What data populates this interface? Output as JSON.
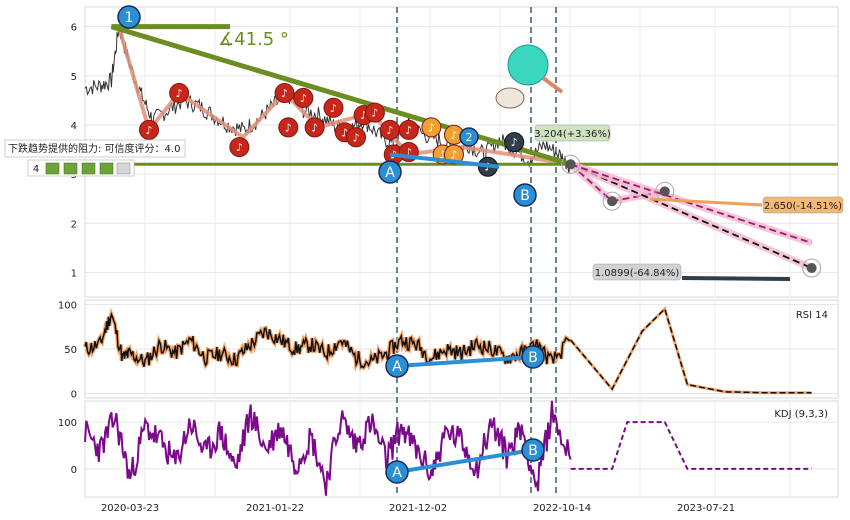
{
  "chart_data": [
    {
      "type": "line",
      "panel": "price",
      "ylim": [
        0.5,
        6.4
      ],
      "yticks": [
        1,
        2,
        3,
        4,
        5,
        6
      ],
      "x_ticks": [
        "2020-03-23",
        "2021-01-22",
        "2021-12-02",
        "2022-10-14",
        "2023-07-21"
      ],
      "x_tick_index": [
        0,
        1,
        2,
        3,
        4
      ],
      "angle_label": "∡41.5 °",
      "resistance_label": "下跌趋势提供的阻力: 可信度评分：4.0",
      "rating_number": "4",
      "annotations": [
        {
          "text": "3.204(+3.36%)",
          "color": "#cfe3bf"
        },
        {
          "text": "2.650(-14.51%)",
          "color": "#f3b776"
        },
        {
          "text": "1.0899(-64.84%)",
          "color": "#d0d3d6"
        }
      ],
      "wave_labels": [
        "1",
        "2",
        "A",
        "B"
      ],
      "series": [
        {
          "values_t": [
            0.0,
            0.02,
            0.035,
            0.045,
            0.06,
            0.075,
            0.09,
            0.11,
            0.13,
            0.15,
            0.17,
            0.19,
            0.21,
            0.23,
            0.25,
            0.27,
            0.29,
            0.31,
            0.33,
            0.35,
            0.37,
            0.39,
            0.41,
            0.43,
            0.45,
            0.47,
            0.49,
            0.51,
            0.53,
            0.55,
            0.57,
            0.59,
            0.61,
            0.63,
            0.645
          ],
          "values": [
            4.75,
            4.8,
            4.9,
            6.0,
            5.2,
            4.6,
            4.1,
            4.3,
            4.5,
            4.4,
            4.2,
            4.0,
            3.9,
            4.1,
            4.4,
            4.6,
            4.3,
            4.2,
            4.0,
            3.9,
            4.1,
            3.8,
            3.6,
            4.0,
            3.8,
            3.7,
            3.5,
            3.6,
            3.4,
            3.7,
            3.5,
            3.3,
            3.6,
            3.4,
            3.15
          ]
        }
      ],
      "trend_line": {
        "start": [
          0.035,
          6.0
        ],
        "end": [
          0.645,
          3.2
        ]
      },
      "support_level": 3.2,
      "projections": [
        {
          "points": [
            [
              0.645,
              3.2
            ],
            [
              0.7,
              2.45
            ],
            [
              0.77,
              2.65
            ]
          ],
          "style": "dashed-pink"
        },
        {
          "points": [
            [
              0.645,
              3.2
            ],
            [
              0.965,
              1.09
            ]
          ],
          "style": "dashed-black"
        },
        {
          "points": [
            [
              0.645,
              3.2
            ],
            [
              0.965,
              1.6
            ]
          ],
          "style": "dashed-pink"
        }
      ]
    },
    {
      "type": "line",
      "panel": "rsi",
      "title": "RSI 14",
      "ylim": [
        -5,
        105
      ],
      "yticks": [
        0,
        50,
        100
      ],
      "series": [
        {
          "values_t": [
            0.0,
            0.02,
            0.035,
            0.05,
            0.06,
            0.08,
            0.1,
            0.12,
            0.14,
            0.16,
            0.18,
            0.2,
            0.22,
            0.24,
            0.26,
            0.28,
            0.3,
            0.32,
            0.34,
            0.36,
            0.38,
            0.4,
            0.42,
            0.44,
            0.46,
            0.48,
            0.5,
            0.52,
            0.54,
            0.56,
            0.58,
            0.6,
            0.62,
            0.645
          ],
          "values": [
            50,
            55,
            90,
            40,
            45,
            35,
            55,
            45,
            60,
            40,
            45,
            38,
            55,
            70,
            60,
            50,
            55,
            45,
            60,
            40,
            35,
            45,
            60,
            55,
            40,
            50,
            45,
            55,
            50,
            40,
            45,
            55,
            35,
            60
          ]
        },
        {
          "values_t": [
            0.645,
            0.7,
            0.74,
            0.77,
            0.8,
            0.85,
            0.9,
            0.965
          ],
          "values": [
            60,
            5,
            70,
            95,
            10,
            2,
            1,
            1
          ]
        }
      ]
    },
    {
      "type": "line",
      "panel": "kdj",
      "title": "KDJ (9,3,3)",
      "ylim": [
        -60,
        145
      ],
      "yticks": [
        0,
        100
      ],
      "series": [
        {
          "values_t": [
            0.0,
            0.02,
            0.04,
            0.06,
            0.08,
            0.1,
            0.12,
            0.14,
            0.16,
            0.18,
            0.2,
            0.22,
            0.24,
            0.26,
            0.28,
            0.3,
            0.32,
            0.34,
            0.36,
            0.38,
            0.4,
            0.42,
            0.44,
            0.46,
            0.48,
            0.5,
            0.52,
            0.54,
            0.56,
            0.58,
            0.6,
            0.62,
            0.645
          ],
          "values": [
            80,
            40,
            110,
            -20,
            90,
            60,
            10,
            100,
            30,
            80,
            0,
            120,
            40,
            90,
            10,
            70,
            -30,
            110,
            50,
            100,
            20,
            90,
            40,
            -10,
            80,
            60,
            0,
            100,
            30,
            90,
            -40,
            120,
            20
          ]
        },
        {
          "values_t": [
            0.645,
            0.7,
            0.72,
            0.77,
            0.8,
            0.965
          ],
          "values": [
            0,
            0,
            100,
            100,
            0,
            0
          ]
        }
      ]
    }
  ]
}
